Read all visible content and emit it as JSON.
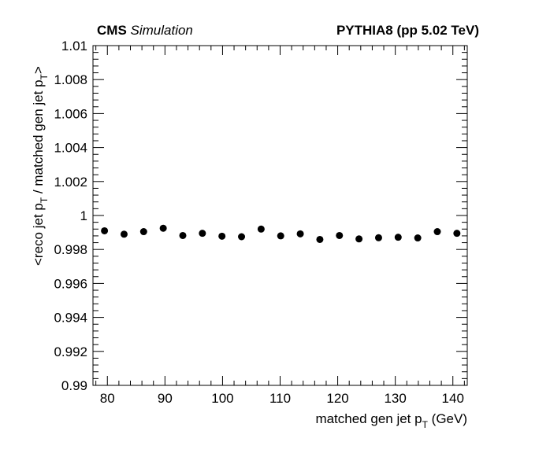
{
  "header": {
    "experiment": "CMS",
    "status": "Simulation",
    "generator": "PYTHIA8 (pp 5.02 TeV)"
  },
  "chart_data": {
    "type": "scatter",
    "xlabel_main": "matched gen jet p",
    "xlabel_sub": "T",
    "xlabel_unit": "(GeV)",
    "ylabel_parts": [
      "<reco jet p",
      "T",
      " / matched gen jet p",
      "T",
      ">"
    ],
    "xlim": [
      77.5,
      142.5
    ],
    "ylim": [
      0.99,
      1.01
    ],
    "x_ticks": [
      80,
      90,
      100,
      110,
      120,
      130,
      140
    ],
    "x_tick_labels": [
      "80",
      "90",
      "100",
      "110",
      "120",
      "130",
      "140"
    ],
    "y_ticks": [
      0.99,
      0.992,
      0.994,
      0.996,
      0.998,
      1.0,
      1.002,
      1.004,
      1.006,
      1.008,
      1.01
    ],
    "y_tick_labels": [
      "0.99",
      "0.992",
      "0.994",
      "0.996",
      "0.998",
      "1",
      "1.002",
      "1.004",
      "1.006",
      "1.008",
      "1.01"
    ],
    "marker_color": "#000000",
    "x": [
      79.5,
      82.9,
      86.3,
      89.7,
      93.1,
      96.5,
      99.9,
      103.3,
      106.7,
      110.1,
      113.5,
      116.9,
      120.3,
      123.7,
      127.1,
      130.5,
      133.9,
      137.3,
      140.7
    ],
    "y": [
      0.9991,
      0.9989,
      0.99905,
      0.99925,
      0.99882,
      0.99895,
      0.99878,
      0.99875,
      0.9992,
      0.9988,
      0.99892,
      0.99859,
      0.99882,
      0.99862,
      0.99869,
      0.99872,
      0.99868,
      0.99905,
      0.99895
    ]
  }
}
